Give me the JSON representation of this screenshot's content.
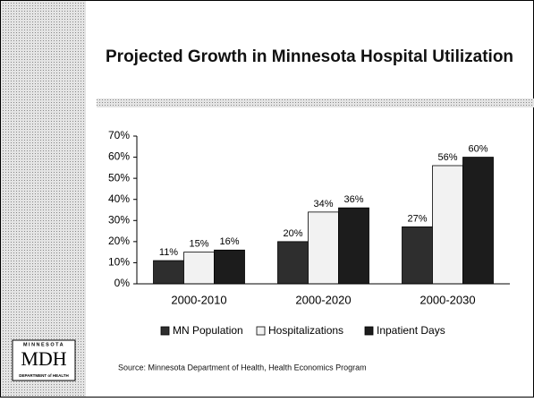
{
  "chart_data": {
    "type": "bar",
    "title": "Projected Growth in Minnesota Hospital Utilization",
    "categories": [
      "2000-2010",
      "2000-2020",
      "2000-2030"
    ],
    "series": [
      {
        "name": "MN Population",
        "color": "#2e2e2e",
        "values": [
          11,
          20,
          27
        ],
        "value_labels": [
          "11%",
          "20%",
          "27%"
        ]
      },
      {
        "name": "Hospitalizations",
        "color": "#f2f2f2",
        "values": [
          15,
          34,
          56
        ],
        "value_labels": [
          "15%",
          "34%",
          "56%"
        ]
      },
      {
        "name": "Inpatient Days",
        "color": "#1c1c1c",
        "values": [
          16,
          36,
          60
        ],
        "value_labels": [
          "16%",
          "36%",
          "60%"
        ]
      }
    ],
    "ylim": [
      0,
      70
    ],
    "yticks": [
      {
        "value": 0,
        "label": "0%"
      },
      {
        "value": 10,
        "label": "10%"
      },
      {
        "value": 20,
        "label": "20%"
      },
      {
        "value": 30,
        "label": "30%"
      },
      {
        "value": 40,
        "label": "40%"
      },
      {
        "value": 50,
        "label": "50%"
      },
      {
        "value": 60,
        "label": "60%"
      },
      {
        "value": 70,
        "label": "70%"
      }
    ],
    "grid": false,
    "legend": "bottom",
    "source": "Source: Minnesota Department of Health, Health Economics Program"
  },
  "logo": {
    "top": "MINNESOTA",
    "main": "MDH",
    "bottom": "DEPARTMENT of HEALTH"
  }
}
